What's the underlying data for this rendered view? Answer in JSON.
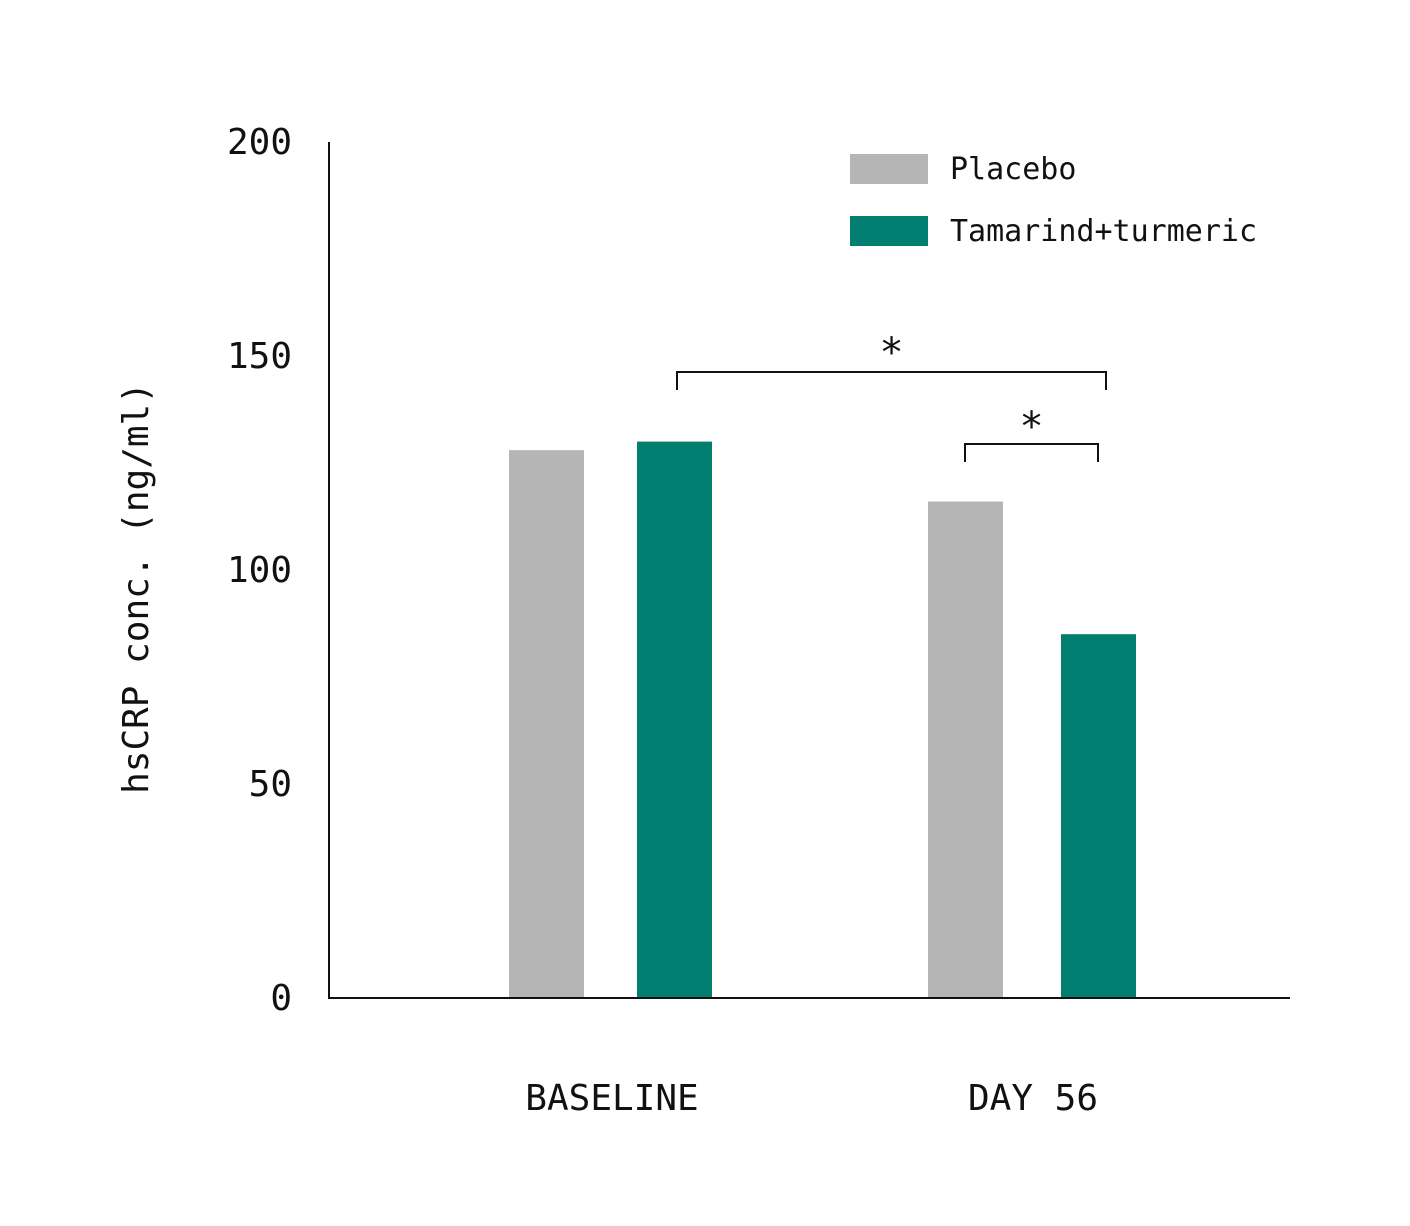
{
  "chart_data": {
    "type": "bar",
    "ylabel": "hsCRP conc. (ng/ml)",
    "xlabel": "",
    "ylim": [
      0,
      200
    ],
    "yticks": [
      0,
      50,
      100,
      150,
      200
    ],
    "categories": [
      "BASELINE",
      "DAY 56"
    ],
    "series": [
      {
        "name": "Placebo",
        "color": "#b5b5b5",
        "values": [
          128,
          116
        ]
      },
      {
        "name": "Tamarind+turmeric",
        "color": "#017e6f",
        "values": [
          130,
          85
        ]
      }
    ],
    "legend_position": "top-right",
    "grid": false,
    "annotations": [
      {
        "label": "*",
        "from": "BASELINE / Tamarind+turmeric",
        "to": "DAY 56 / Tamarind+turmeric"
      },
      {
        "label": "*",
        "from": "DAY 56 / Placebo",
        "to": "DAY 56 / Tamarind+turmeric"
      }
    ]
  }
}
